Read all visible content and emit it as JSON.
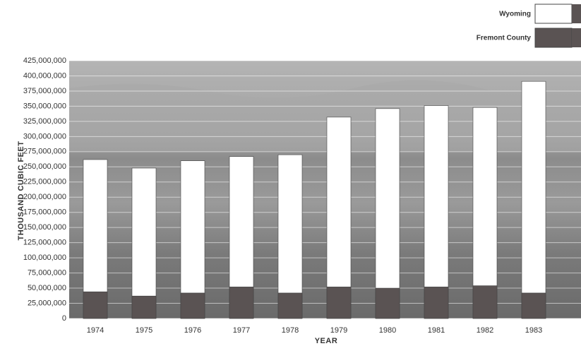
{
  "chart_data": {
    "type": "bar",
    "y_label": "THOUSAND CUBIC FEET",
    "x_label": "YEAR",
    "categories": [
      "1974",
      "1975",
      "1976",
      "1977",
      "1978",
      "1979",
      "1980",
      "1981",
      "1982",
      "1983"
    ],
    "series": [
      {
        "name": "Wyoming",
        "color": "#ffffff",
        "values": [
          262000000,
          248000000,
          260000000,
          267000000,
          270000000,
          332000000,
          346000000,
          351000000,
          348000000,
          391000000
        ]
      },
      {
        "name": "Fremont County",
        "color": "#5a5353",
        "values": [
          44000000,
          37000000,
          42000000,
          52000000,
          42000000,
          52000000,
          50000000,
          52000000,
          54000000,
          42000000
        ]
      }
    ],
    "ylim": [
      0,
      425000000
    ],
    "yticks": [
      0,
      {
        "value": 25000000,
        "label": "25,000,000"
      },
      {
        "value": 50000000,
        "label": "50,000,000"
      },
      {
        "value": 75000000,
        "label": "75,000,000"
      },
      {
        "value": 100000000,
        "label": "100,000,000"
      },
      {
        "value": 125000000,
        "label": "125,000,000"
      },
      {
        "value": 150000000,
        "label": "150,000,000"
      },
      {
        "value": 175000000,
        "label": "175,000,000"
      },
      {
        "value": 200000000,
        "label": "200,000,000"
      },
      {
        "value": 225000000,
        "label": "225,000,000"
      },
      {
        "value": 250000000,
        "label": "250,000,000"
      },
      {
        "value": 275000000,
        "label": "275,000,000"
      },
      {
        "value": 300000000,
        "label": "300,000,000"
      },
      {
        "value": 325000000,
        "label": "325,000,000"
      },
      {
        "value": 350000000,
        "label": "350,000,000"
      },
      {
        "value": 375000000,
        "label": "375,000,000"
      },
      {
        "value": 400000000,
        "label": "400,000,000"
      },
      {
        "value": 425000000,
        "label": "425,000,000"
      }
    ],
    "grid": true
  }
}
